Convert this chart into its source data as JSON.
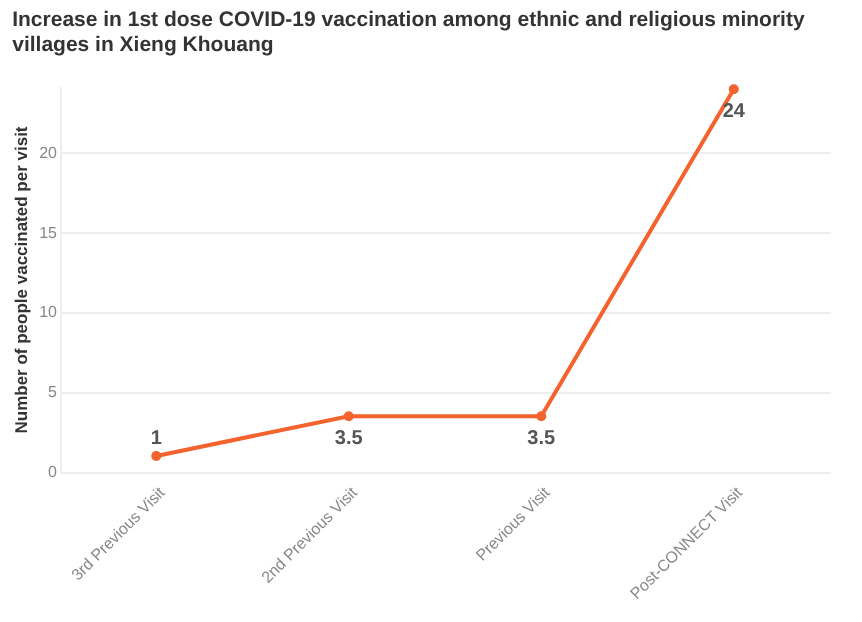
{
  "chart_data": {
    "type": "line",
    "title": "Increase in 1st dose COVID-19 vaccination among ethnic and religious minority villages in Xieng Khouang",
    "ylabel": "Number of people vaccinated per visit",
    "categories": [
      "3rd Previous Visit",
      "2nd Previous Visit",
      "Previous Visit",
      "Post-CONNECT Visit"
    ],
    "series": [
      {
        "color": "#f4622d",
        "values": [
          1,
          3.5,
          3.5,
          24
        ]
      }
    ],
    "ylim": [
      0,
      24.2
    ],
    "yticks": [
      0,
      5,
      10,
      15,
      20
    ],
    "grid": "y",
    "marker": "circle",
    "line_style": "solid",
    "data_labels": true
  }
}
